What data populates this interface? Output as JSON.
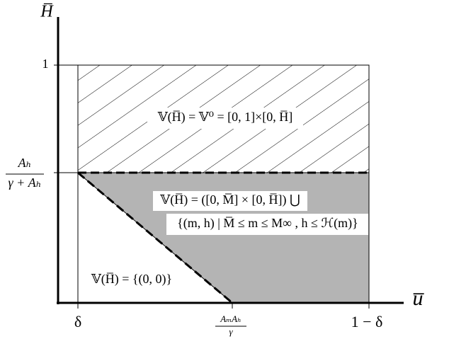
{
  "axes": {
    "y_label": "H̅",
    "x_label": "u̅"
  },
  "y_ticks": {
    "one": "1",
    "ah_numerator": "Aₕ",
    "ah_denominator": "γ + Aₕ"
  },
  "x_ticks": {
    "delta": "δ",
    "am_numerator": "AₘAₕ",
    "am_denominator": "γ",
    "one_minus_delta": "1 − δ"
  },
  "regions": {
    "top": "𝕍(H̅) = 𝕍⁰ = [0, 1]×[0, H̅]",
    "middle_line1": "𝕍(H̅) = ([0, M̅] × [0, H̅]) ⋃",
    "middle_line2": "{(m, h) | M̅ ≤ m ≤ M∞ ,  h ≤ ℋ(m)}",
    "bottom": "𝕍(H̅) = {(0, 0)}"
  }
}
